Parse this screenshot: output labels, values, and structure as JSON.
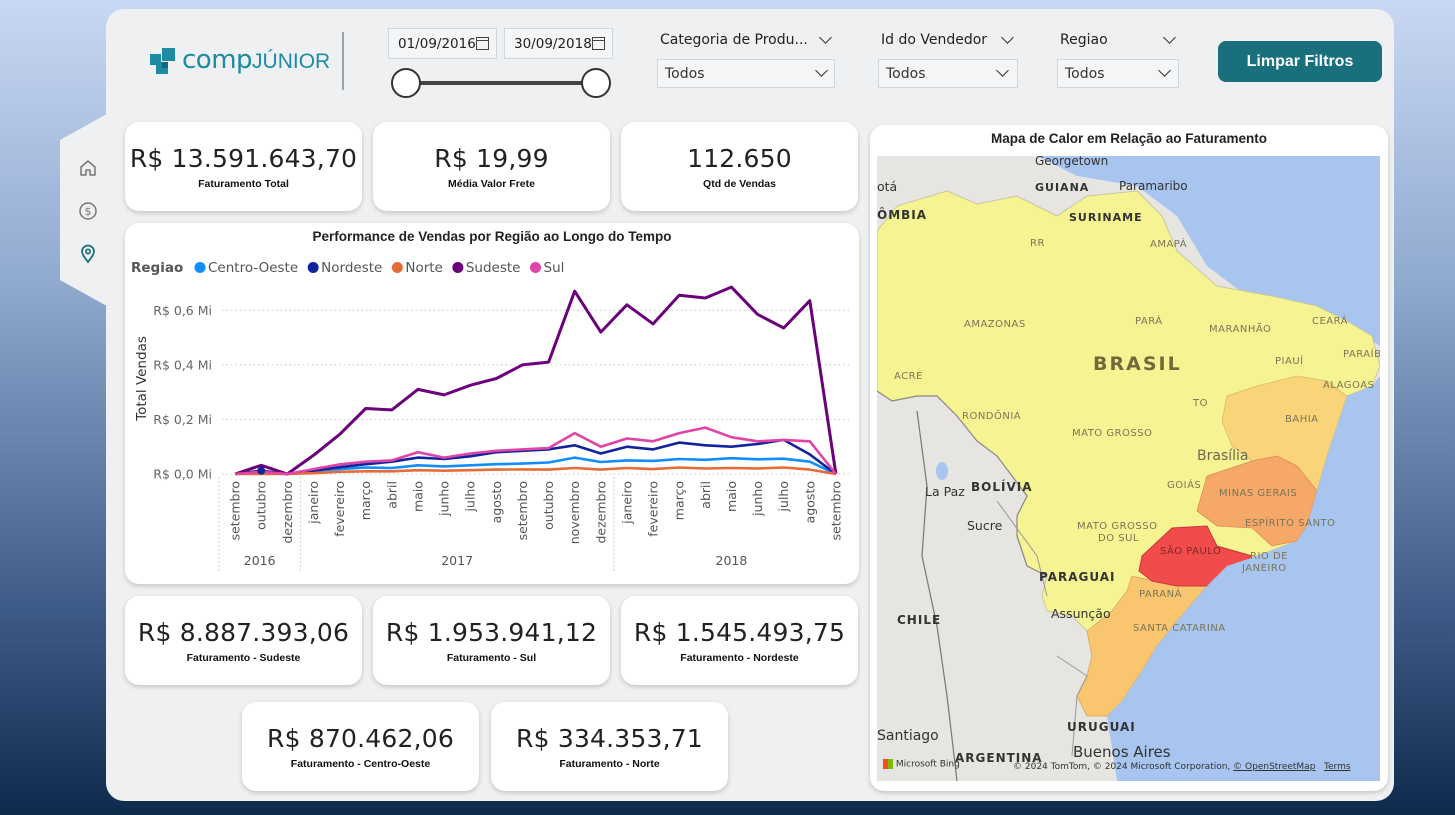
{
  "brand": {
    "logo_main": "comp",
    "logo_sub": "JÚNIOR"
  },
  "nav": {
    "items": [
      {
        "icon": "home-icon"
      },
      {
        "icon": "dollar-icon"
      },
      {
        "icon": "location-pin-icon"
      }
    ]
  },
  "filters": {
    "date_start": "01/09/2016",
    "date_end": "30/09/2018",
    "categoria": {
      "label": "Categoria de Produ...",
      "value": "Todos"
    },
    "vendedor": {
      "label": "Id do Vendedor",
      "value": "Todos"
    },
    "regiao": {
      "label": "Regiao",
      "value": "Todos"
    },
    "clear_button": "Limpar Filtros"
  },
  "kpis": {
    "faturamento_total": {
      "value": "R$ 13.591.643,70",
      "label": "Faturamento Total"
    },
    "media_frete": {
      "value": "R$ 19,99",
      "label": "Média Valor Frete"
    },
    "qtd_vendas": {
      "value": "112.650",
      "label": "Qtd de Vendas"
    },
    "sudeste": {
      "value": "R$ 8.887.393,06",
      "label": "Faturamento - Sudeste"
    },
    "sul": {
      "value": "R$ 1.953.941,12",
      "label": "Faturamento - Sul"
    },
    "nordeste": {
      "value": "R$ 1.545.493,75",
      "label": "Faturamento - Nordeste"
    },
    "centro_oeste": {
      "value": "R$ 870.462,06",
      "label": "Faturamento - Centro-Oeste"
    },
    "norte": {
      "value": "R$ 334.353,71",
      "label": "Faturamento - Norte"
    }
  },
  "chart_data": {
    "type": "line",
    "title": "Performance de Vendas por Região ao Longo do Tempo",
    "legend_title": "Regiao",
    "ylabel": "Total Vendas",
    "ylim": [
      0,
      0.7
    ],
    "y_ticks": [
      "R$ 0,0 Mi",
      "R$ 0,2 Mi",
      "R$ 0,4 Mi",
      "R$ 0,6 Mi"
    ],
    "y_tick_values": [
      0,
      0.2,
      0.4,
      0.6
    ],
    "categories": [
      "setembro",
      "outubro",
      "dezembro",
      "janeiro",
      "fevereiro",
      "março",
      "abril",
      "maio",
      "junho",
      "julho",
      "agosto",
      "setembro",
      "outubro",
      "novembro",
      "dezembro",
      "janeiro",
      "fevereiro",
      "março",
      "abril",
      "maio",
      "junho",
      "julho",
      "agosto",
      "setembro"
    ],
    "years": [
      {
        "label": "2016",
        "start": 0,
        "end": 2
      },
      {
        "label": "2017",
        "start": 3,
        "end": 14
      },
      {
        "label": "2018",
        "start": 15,
        "end": 23
      }
    ],
    "series": [
      {
        "name": "Centro-Oeste",
        "color": "#118dff",
        "values": [
          0,
          0.004,
          0,
          0.012,
          0.018,
          0.024,
          0.022,
          0.032,
          0.028,
          0.032,
          0.036,
          0.038,
          0.042,
          0.06,
          0.044,
          0.05,
          0.048,
          0.055,
          0.052,
          0.058,
          0.054,
          0.056,
          0.045,
          0
        ]
      },
      {
        "name": "Nordeste",
        "color": "#12239e",
        "values": [
          0,
          0.012,
          0,
          0.012,
          0.025,
          0.036,
          0.045,
          0.06,
          0.055,
          0.065,
          0.08,
          0.085,
          0.09,
          0.105,
          0.075,
          0.1,
          0.09,
          0.115,
          0.105,
          0.1,
          0.11,
          0.125,
          0.072,
          0
        ]
      },
      {
        "name": "Norte",
        "color": "#e66c37",
        "values": [
          0,
          0,
          0,
          0.003,
          0.008,
          0.01,
          0.01,
          0.014,
          0.012,
          0.014,
          0.016,
          0.017,
          0.016,
          0.022,
          0.016,
          0.022,
          0.018,
          0.024,
          0.02,
          0.022,
          0.02,
          0.024,
          0.016,
          0
        ]
      },
      {
        "name": "Sudeste",
        "color": "#6b007b",
        "values": [
          0,
          0.032,
          0,
          0.068,
          0.145,
          0.24,
          0.235,
          0.31,
          0.29,
          0.325,
          0.35,
          0.4,
          0.41,
          0.67,
          0.52,
          0.62,
          0.55,
          0.655,
          0.645,
          0.685,
          0.585,
          0.535,
          0.635,
          0
        ]
      },
      {
        "name": "Sul",
        "color": "#e044a7",
        "values": [
          0,
          0.008,
          0,
          0.018,
          0.035,
          0.045,
          0.05,
          0.08,
          0.06,
          0.075,
          0.085,
          0.09,
          0.095,
          0.15,
          0.1,
          0.13,
          0.12,
          0.15,
          0.17,
          0.135,
          0.12,
          0.125,
          0.12,
          0
        ]
      }
    ]
  },
  "map": {
    "title": "Mapa de Calor em Relação ao Faturamento",
    "credit_bing": "Microsoft Bing",
    "credit_text": "© 2024 TomTom, © 2024 Microsoft Corporation, ",
    "credit_osm": "© OpenStreetMap",
    "credit_terms": "Terms",
    "labels": {
      "georgetown": "Georgetown",
      "guiana": "GUIANA",
      "paramaribo": "Paramaribo",
      "suriname": "SURINAME",
      "bota": "otá",
      "colombia": "ÔMBIA",
      "rr": "RR",
      "amapa": "AMAPÁ",
      "amazonas": "AMAZONAS",
      "para": "PARÁ",
      "maranhao": "MARANHÃO",
      "ceara": "CEARÁ",
      "brasil": "BRASIL",
      "piaui": "PIAUÍ",
      "paraiba": "PARAÍB",
      "alagoas": "ALAGOAS",
      "acre": "ACRE",
      "rondonia": "RONDÔNIA",
      "to": "TO",
      "bahia": "BAHIA",
      "mato_grosso": "MATO GROSSO",
      "brasilia": "Brasília",
      "goias": "GOIÁS",
      "la_paz": "La Paz",
      "bolivia": "BOLÍVIA",
      "minas": "MINAS GERAIS",
      "sucre": "Sucre",
      "espirito": "ESPÍRITO SANTO",
      "ms1": "MATO GROSSO",
      "ms2": "DO SUL",
      "sao_paulo": "SÃO PAULO",
      "rio1": "RIO DE",
      "rio2": "JANEIRO",
      "paraguai": "PARAGUAI",
      "parana": "PARANÁ",
      "assuncao": "Assunção",
      "chile": "CHILE",
      "santa_catarina": "SANTA CATARINA",
      "uruguai": "URUGUAI",
      "santiago": "Santiago",
      "argentina": "ARGENTINA",
      "buenos_aires": "Buenos Aires"
    }
  }
}
